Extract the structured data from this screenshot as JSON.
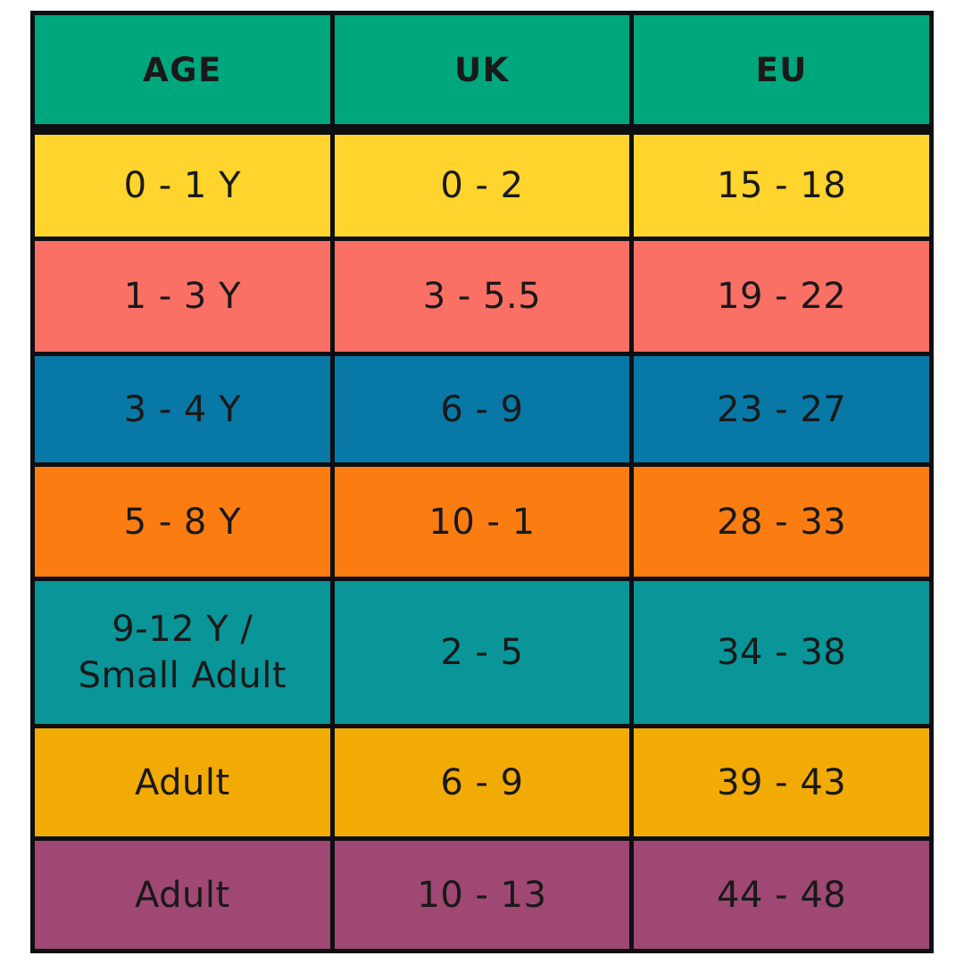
{
  "chart_data": {
    "type": "table",
    "columns": [
      "AGE",
      "UK",
      "EU"
    ],
    "rows": [
      [
        "0 - 1 Y",
        "0 - 2",
        "15 - 18"
      ],
      [
        "1 - 3 Y",
        "3 - 5.5",
        "19 - 22"
      ],
      [
        "3 - 4 Y",
        "6 - 9",
        "23 - 27"
      ],
      [
        "5 - 8 Y",
        "10 - 1",
        "28 - 33"
      ],
      [
        "9-12 Y / Small Adult",
        "2 - 5",
        "34 - 38"
      ],
      [
        "Adult",
        "6 - 9",
        "39 - 43"
      ],
      [
        "Adult",
        "10 - 13",
        "44 - 48"
      ]
    ],
    "header_color": "#00a77d",
    "row_colors": [
      "#ffd42d",
      "#fb7065",
      "#0878a6",
      "#fb7d12",
      "#0a9598",
      "#f2ab05",
      "#9e4873"
    ]
  },
  "cells_display": {
    "row5_age": [
      "9-12 Y /",
      "Small Adult"
    ]
  },
  "colors": {
    "header_green": "#00a77d",
    "row_yellow": "#ffd42d",
    "row_coral": "#fb7065",
    "row_blue": "#0878a6",
    "row_orange": "#fb7d12",
    "row_teal": "#0a9598",
    "row_amber": "#f2ab05",
    "row_plum": "#9e4873",
    "border": "#0d0f13",
    "text": "#191919",
    "background": "#ffffff"
  }
}
